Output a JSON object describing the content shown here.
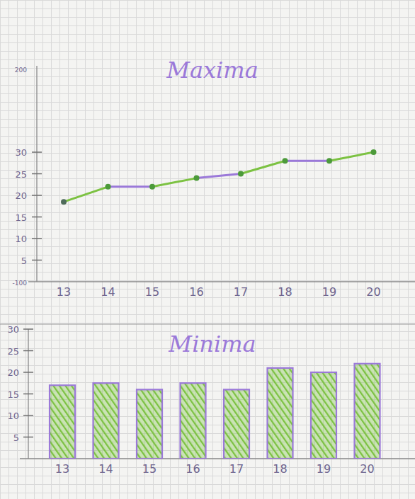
{
  "chart_data": [
    {
      "type": "line",
      "title": "Maxima",
      "categories": [
        "13",
        "14",
        "15",
        "16",
        "17",
        "18",
        "19",
        "20"
      ],
      "values": [
        18.5,
        22,
        22,
        24,
        25,
        28,
        28,
        30
      ],
      "color": "#7cc242",
      "marker": "circle",
      "ylim": [
        0,
        50
      ],
      "yticks": [
        5,
        10,
        15,
        20,
        25,
        30
      ],
      "annotations": [
        "200",
        "-100"
      ],
      "grid": false
    },
    {
      "type": "bar",
      "title": "Minima",
      "categories": [
        "13",
        "14",
        "15",
        "16",
        "17",
        "18",
        "19",
        "20"
      ],
      "values": [
        17,
        17.5,
        16,
        17.5,
        16,
        21,
        20,
        22
      ],
      "color": "#7cc242",
      "ylim": [
        0,
        30
      ],
      "yticks": [
        5,
        10,
        15,
        20,
        25,
        30
      ],
      "grid": false
    }
  ]
}
